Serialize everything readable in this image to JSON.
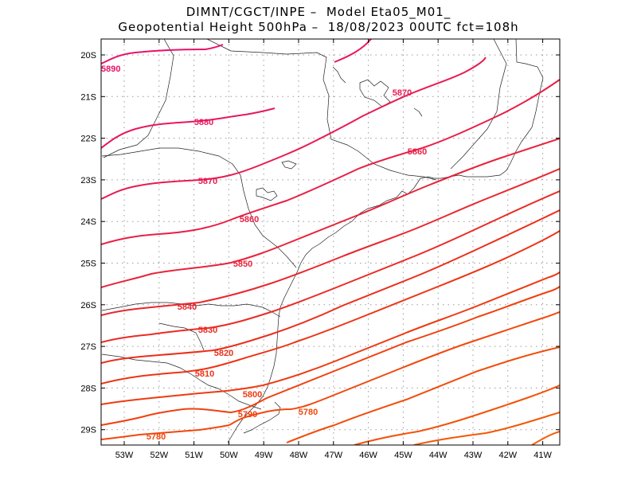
{
  "header": {
    "line1": "DIMNT/CGCT/INPE –  Model Eta05_M01_",
    "line2": "Geopotential Height 500hPa –  18/08/2023 00UTC fct=108h"
  },
  "map": {
    "lon_range": [
      -53.6,
      -40.6
    ],
    "lat_range": [
      -29.4,
      -19.7
    ],
    "lat_ticks": [
      "20S",
      "21S",
      "22S",
      "23S",
      "24S",
      "25S",
      "26S",
      "27S",
      "28S",
      "29S"
    ],
    "lon_ticks": [
      "53W",
      "52W",
      "51W",
      "50W",
      "49W",
      "48W",
      "47W",
      "46W",
      "45W",
      "44W",
      "43W",
      "42W",
      "41W"
    ]
  },
  "contours": {
    "colors": {
      "5890": "#e8126a",
      "5880": "#e8175e",
      "5870": "#e81b52",
      "5860": "#e81f46",
      "5850": "#e8233a",
      "5840": "#e9272e",
      "5830": "#ea2b24",
      "5820": "#eb2f1a",
      "5810": "#ec3414",
      "5800": "#ee3a10",
      "5790": "#f0400e",
      "5780": "#f2470c"
    },
    "labels": [
      {
        "text": "5890",
        "color": "#e8126a"
      },
      {
        "text": "5880",
        "color": "#e8175e"
      },
      {
        "text": "5870",
        "color": "#e81b52"
      },
      {
        "text": "5870",
        "color": "#e81b52"
      },
      {
        "text": "5860",
        "color": "#e81f46"
      },
      {
        "text": "5860",
        "color": "#e81f46"
      },
      {
        "text": "5850",
        "color": "#e8233a"
      },
      {
        "text": "5840",
        "color": "#e9272e"
      },
      {
        "text": "5830",
        "color": "#ea2b24"
      },
      {
        "text": "5820",
        "color": "#eb2f1a"
      },
      {
        "text": "5810",
        "color": "#ec3414"
      },
      {
        "text": "5800",
        "color": "#ee3a10"
      },
      {
        "text": "5790",
        "color": "#f0400e"
      },
      {
        "text": "5780",
        "color": "#f2470c"
      },
      {
        "text": "5780",
        "color": "#f2470c"
      }
    ]
  }
}
